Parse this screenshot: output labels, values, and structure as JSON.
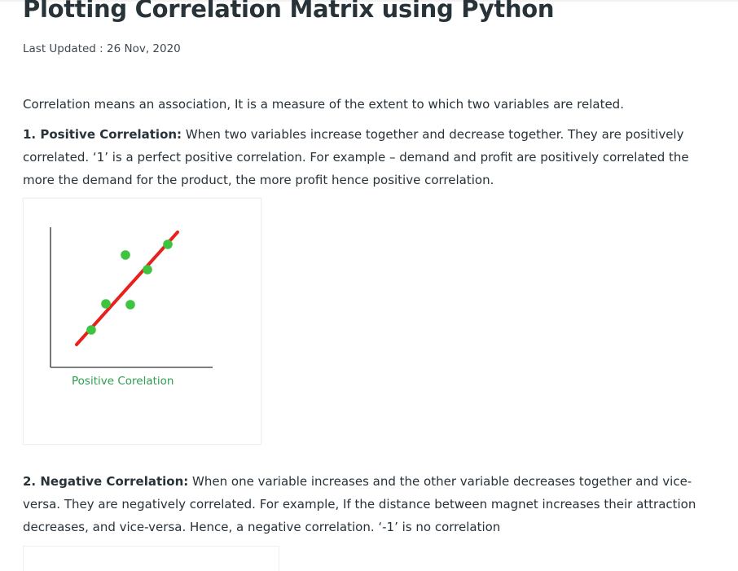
{
  "article": {
    "title": "Plotting Correlation Matrix using Python",
    "last_updated": "Last Updated : 26 Nov, 2020",
    "intro": "Correlation means an association, It is a measure of the extent to which two variables are related.",
    "positive": {
      "heading": "1. Positive Correlation:",
      "text": " When two variables increase together and decrease together. They are positively correlated. ‘1’ is a perfect positive correlation. For example – demand and profit are positively correlated the more the demand for the product, the more profit hence positive correlation."
    },
    "negative": {
      "heading": "2. Negative Correlation:",
      "text": " When one variable increases and the other variable decreases together and vice-versa. They are negatively correlated. For example, If the distance between magnet increases their attraction decreases, and vice-versa. Hence, a negative correlation. ‘-1’ is no correlation"
    }
  },
  "figure_positive": {
    "caption": "Positive Corelation",
    "colors": {
      "axis": "#555555",
      "trend": "#e8201e",
      "point": "#3ec43e",
      "caption": "#2e9e4f"
    }
  }
}
